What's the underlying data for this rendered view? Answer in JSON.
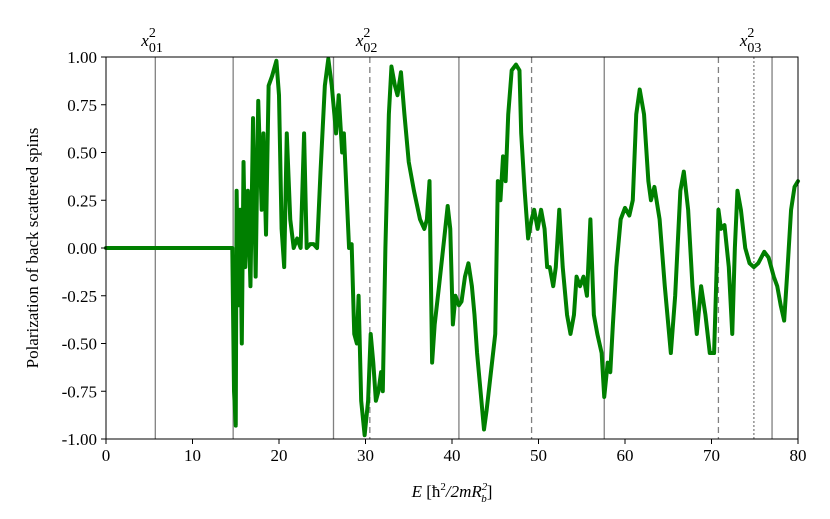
{
  "chart_data": {
    "type": "line",
    "y_label": "Polarization of back scattered spins",
    "x_label": [
      "E",
      " [ħ",
      "2",
      "/2mR",
      "b",
      "2",
      "]"
    ],
    "x": [
      0,
      14.6,
      14.8,
      15.0,
      15.1,
      15.3,
      15.5,
      15.7,
      15.9,
      16.1,
      16.4,
      16.7,
      17.0,
      17.3,
      17.6,
      18.0,
      18.2,
      18.5,
      18.8,
      19.2,
      19.7,
      20.0,
      20.3,
      20.6,
      20.9,
      21.3,
      21.7,
      22.1,
      22.5,
      22.9,
      23.2,
      23.6,
      24.0,
      24.4,
      24.8,
      25.3,
      25.7,
      26.1,
      26.6,
      26.9,
      27.3,
      27.5,
      27.8,
      28.1,
      28.4,
      28.7,
      29.0,
      29.2,
      29.5,
      29.9,
      30.3,
      30.6,
      30.9,
      31.2,
      31.5,
      31.8,
      32.0,
      32.3,
      32.7,
      33.0,
      33.4,
      33.7,
      34.1,
      34.5,
      35.0,
      35.6,
      36.3,
      36.8,
      37.1,
      37.4,
      37.7,
      38.0,
      38.5,
      39.1,
      39.5,
      39.8,
      40.1,
      40.4,
      40.8,
      41.1,
      41.5,
      41.9,
      42.3,
      42.6,
      42.9,
      43.3,
      43.7,
      44.0,
      44.5,
      45.0,
      45.3,
      45.6,
      45.9,
      46.2,
      46.5,
      46.9,
      47.4,
      47.8,
      48.0,
      48.4,
      48.8,
      49.2,
      49.5,
      49.9,
      50.3,
      50.7,
      51.0,
      51.3,
      51.7,
      52.0,
      52.4,
      52.8,
      53.3,
      53.7,
      54.1,
      54.4,
      54.8,
      55.2,
      55.6,
      56.0,
      56.4,
      56.8,
      57.3,
      57.6,
      58.0,
      58.3,
      58.6,
      59.0,
      59.5,
      60.0,
      60.5,
      60.9,
      61.3,
      61.7,
      62.2,
      62.7,
      63.0,
      63.4,
      64.0,
      64.6,
      65.3,
      65.8,
      66.4,
      66.8,
      67.3,
      67.8,
      68.3,
      68.8,
      69.3,
      69.8,
      70.3,
      70.8,
      71.1,
      71.5,
      72.0,
      72.4,
      72.7,
      73.0,
      73.4,
      73.9,
      74.4,
      74.9,
      75.4,
      76.1,
      76.6,
      77.2,
      77.6,
      78.0,
      78.4,
      78.8,
      79.2,
      79.6,
      80.0
    ],
    "series": [
      {
        "color": "#007f00",
        "values": [
          0,
          0,
          -0.75,
          -0.93,
          0.3,
          -0.3,
          0.2,
          -0.5,
          0.45,
          -0.1,
          0.3,
          -0.2,
          0.68,
          -0.15,
          0.77,
          0.2,
          0.6,
          0.07,
          0.85,
          0.9,
          0.98,
          0.8,
          0.1,
          -0.1,
          0.6,
          0.15,
          0.0,
          0.05,
          0.0,
          0.6,
          0.0,
          0.02,
          0.02,
          0.0,
          0.4,
          0.85,
          0.99,
          0.85,
          0.6,
          0.8,
          0.5,
          0.6,
          0.3,
          0.0,
          0.02,
          -0.45,
          -0.5,
          -0.25,
          -0.8,
          -0.98,
          -0.8,
          -0.45,
          -0.6,
          -0.8,
          -0.75,
          -0.65,
          -0.75,
          0.0,
          0.7,
          0.95,
          0.85,
          0.8,
          0.92,
          0.7,
          0.45,
          0.3,
          0.15,
          0.1,
          0.15,
          0.35,
          -0.6,
          -0.4,
          -0.2,
          0.05,
          0.22,
          0.1,
          -0.4,
          -0.25,
          -0.3,
          -0.28,
          -0.15,
          -0.08,
          -0.2,
          -0.35,
          -0.55,
          -0.75,
          -0.95,
          -0.85,
          -0.65,
          -0.45,
          0.35,
          0.25,
          0.48,
          0.35,
          0.7,
          0.93,
          0.96,
          0.93,
          0.6,
          0.3,
          0.05,
          0.15,
          0.2,
          0.1,
          0.2,
          0.1,
          -0.1,
          -0.1,
          -0.2,
          -0.1,
          0.2,
          -0.1,
          -0.35,
          -0.45,
          -0.35,
          -0.15,
          -0.2,
          -0.15,
          -0.25,
          0.15,
          -0.35,
          -0.45,
          -0.55,
          -0.78,
          -0.6,
          -0.65,
          -0.4,
          -0.1,
          0.15,
          0.21,
          0.17,
          0.25,
          0.7,
          0.83,
          0.7,
          0.35,
          0.25,
          0.32,
          0.15,
          -0.2,
          -0.55,
          -0.25,
          0.3,
          0.4,
          0.2,
          -0.2,
          -0.45,
          -0.2,
          -0.35,
          -0.55,
          -0.55,
          0.2,
          0.1,
          0.12,
          -0.1,
          -0.45,
          0.0,
          0.3,
          0.2,
          0.0,
          -0.08,
          -0.1,
          -0.08,
          -0.02,
          -0.05,
          -0.15,
          -0.2,
          -0.3,
          -0.38,
          -0.1,
          0.2,
          0.32,
          0.35
        ]
      }
    ],
    "vlines": [
      {
        "x": 5.7,
        "style": "solid"
      },
      {
        "x": 14.7,
        "style": "solid"
      },
      {
        "x": 26.3,
        "style": "solid"
      },
      {
        "x": 30.5,
        "style": "dashed"
      },
      {
        "x": 40.8,
        "style": "solid"
      },
      {
        "x": 49.2,
        "style": "dashed"
      },
      {
        "x": 57.6,
        "style": "solid"
      },
      {
        "x": 70.8,
        "style": "dashed"
      },
      {
        "x": 74.9,
        "style": "dotted"
      },
      {
        "x": 77.0,
        "style": "solid"
      }
    ],
    "annotations": [
      {
        "x": 5.7,
        "base": "x",
        "sup": "2",
        "sub": "01"
      },
      {
        "x": 30.5,
        "base": "x",
        "sup": "2",
        "sub": "02"
      },
      {
        "x": 74.9,
        "base": "x",
        "sup": "2",
        "sub": "03"
      }
    ],
    "xlim": [
      0,
      80
    ],
    "xticks": [
      0,
      10,
      20,
      30,
      40,
      50,
      60,
      70,
      80
    ],
    "ylim": [
      -1,
      1
    ],
    "yticks": [
      {
        "value": -1,
        "label": "-1.00"
      },
      {
        "value": -0.75,
        "label": "-0.75"
      },
      {
        "value": -0.5,
        "label": "-0.50"
      },
      {
        "value": -0.25,
        "label": "-0.25"
      },
      {
        "value": 0,
        "label": "0.00"
      },
      {
        "value": 0.25,
        "label": "0.25"
      },
      {
        "value": 0.5,
        "label": "0.50"
      },
      {
        "value": 0.75,
        "label": "0.75"
      },
      {
        "value": 1,
        "label": "1.00"
      }
    ],
    "grid": false
  }
}
